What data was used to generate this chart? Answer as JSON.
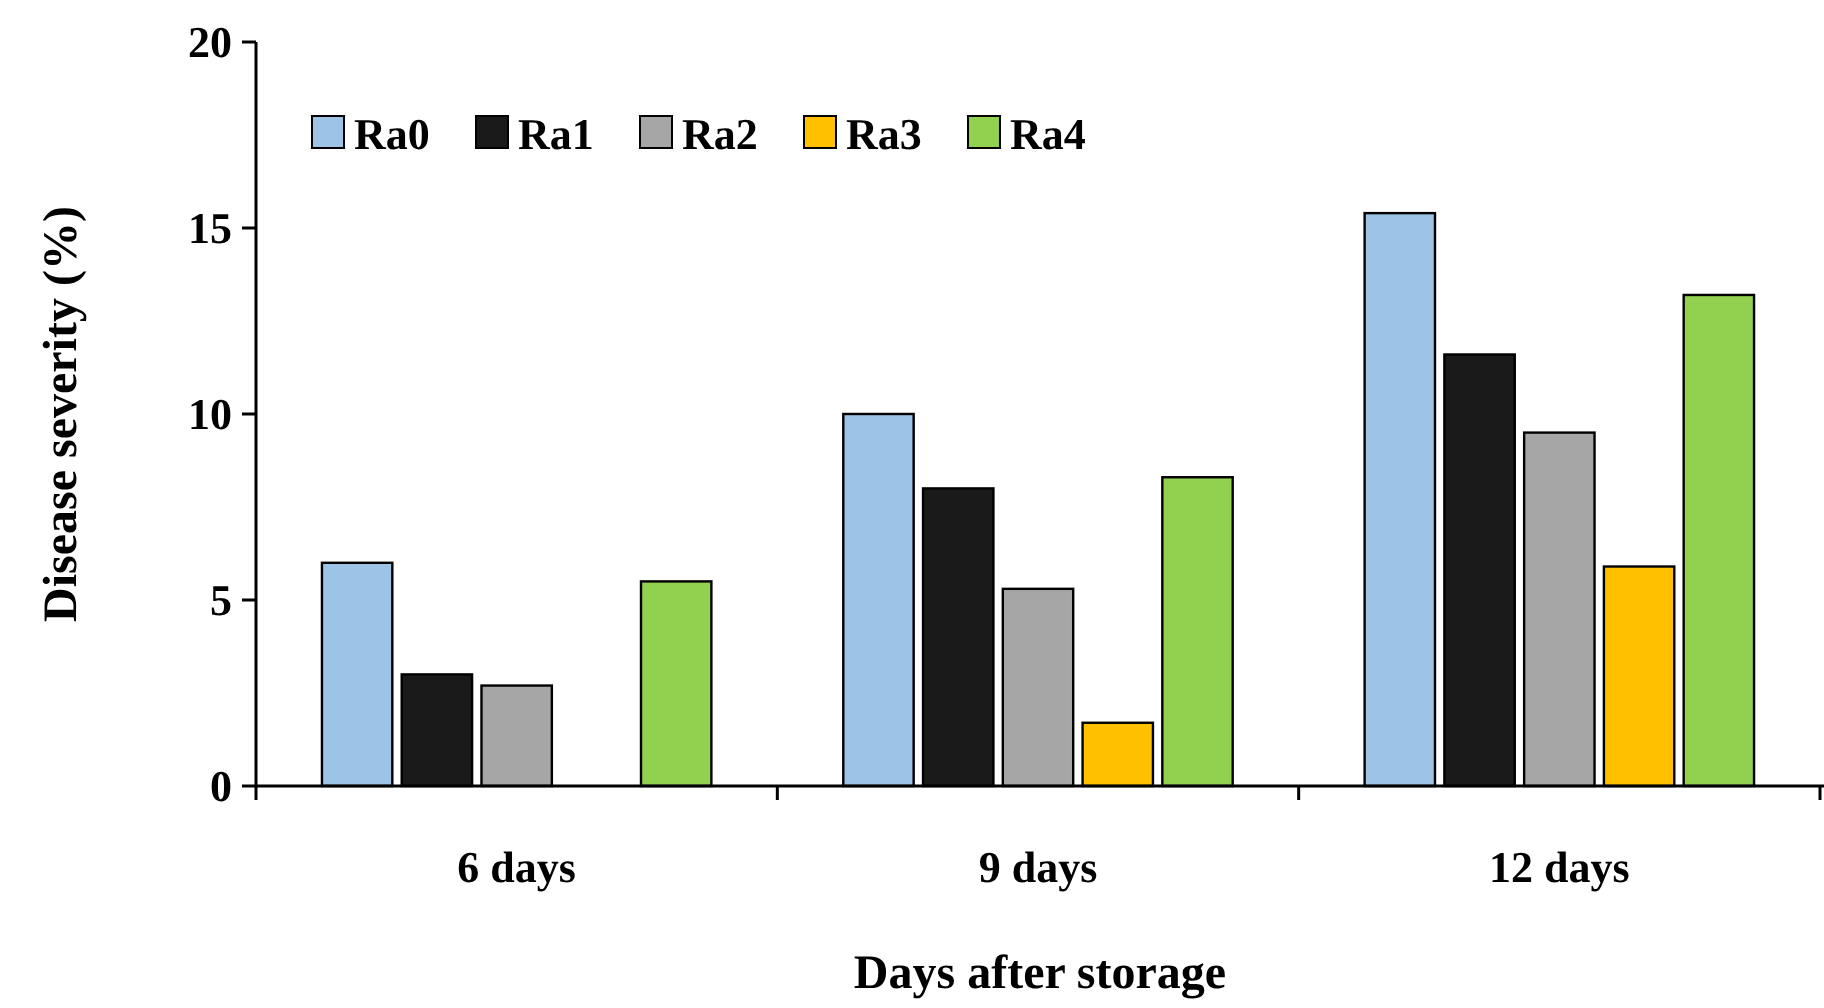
{
  "chart_data": {
    "type": "bar",
    "xlabel": "Days after storage",
    "ylabel": "Disease severity (%)",
    "categories": [
      "6 days",
      "9 days",
      "12 days"
    ],
    "series": [
      {
        "name": "Ra0",
        "color": "#9dc3e6",
        "values": [
          6.0,
          10.0,
          15.4
        ]
      },
      {
        "name": "Ra1",
        "color": "#1a1a1a",
        "values": [
          3.0,
          8.0,
          11.6
        ]
      },
      {
        "name": "Ra2",
        "color": "#a6a6a6",
        "values": [
          2.7,
          5.3,
          9.5
        ]
      },
      {
        "name": "Ra3",
        "color": "#ffc000",
        "values": [
          null,
          1.7,
          5.9
        ]
      },
      {
        "name": "Ra4",
        "color": "#92d050",
        "values": [
          5.5,
          8.3,
          13.2
        ]
      }
    ],
    "ylim": [
      0,
      20
    ],
    "yticks": [
      0,
      5,
      10,
      15,
      20
    ],
    "grid": false,
    "legend": "top left"
  }
}
